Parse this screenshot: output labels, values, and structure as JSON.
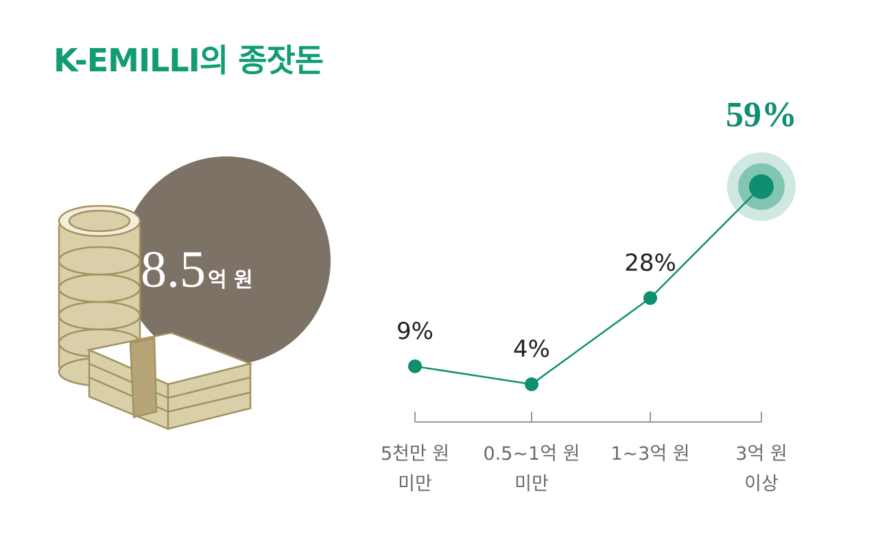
{
  "title": "K-EMILLI의 종잣돈",
  "highlight": {
    "value": "8.5",
    "unit": "억 원"
  },
  "chart_data": {
    "type": "line",
    "categories": [
      "5천만 원\n미만",
      "0.5~1억 원\n미만",
      "1~3억 원",
      "3억 원\n이상"
    ],
    "values": [
      9,
      4,
      28,
      59
    ],
    "value_labels": [
      "9%",
      "4%",
      "28%",
      "59%"
    ],
    "color": "#0e8f6f"
  }
}
